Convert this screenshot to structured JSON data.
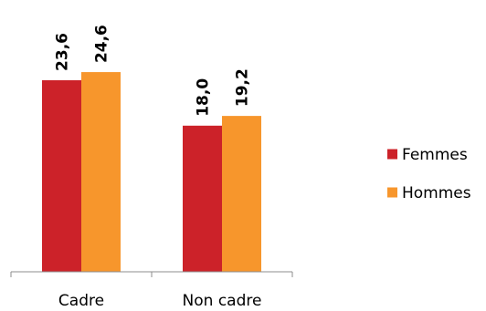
{
  "chart_data": {
    "type": "bar",
    "categories": [
      "Cadre",
      "Non cadre"
    ],
    "series": [
      {
        "name": "Femmes",
        "values": [
          23.6,
          18.0
        ],
        "labels": [
          "23,6",
          "18,0"
        ],
        "color": "#cc2229"
      },
      {
        "name": "Hommes",
        "values": [
          24.6,
          19.2
        ],
        "labels": [
          "24,6",
          "19,2"
        ],
        "color": "#f7962c"
      }
    ],
    "title": "",
    "xlabel": "",
    "ylabel": "",
    "ylim": [
      0,
      32.3
    ],
    "grid": false,
    "legend_position": "right"
  }
}
